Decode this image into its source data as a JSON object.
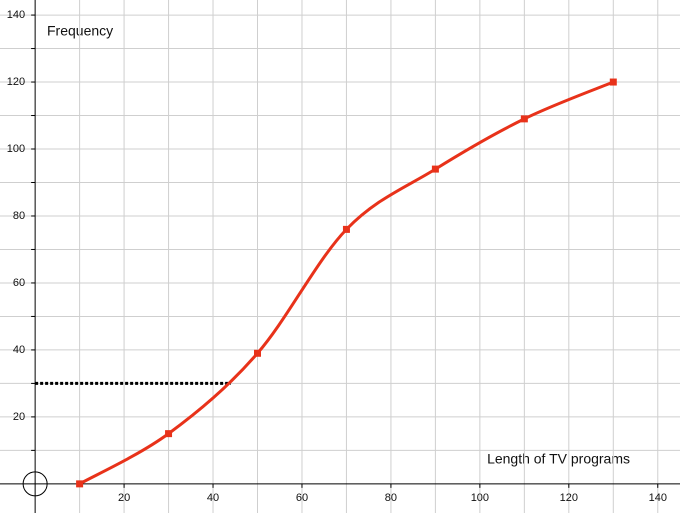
{
  "chart_data": {
    "type": "line",
    "x_label": "Length of TV programs",
    "y_label": "Frequency",
    "x": [
      10,
      30,
      50,
      70,
      90,
      110,
      130
    ],
    "series": [
      {
        "color": "#e8321a",
        "values": [
          0,
          15,
          39,
          76,
          94,
          109,
          120
        ]
      }
    ],
    "xlim": [
      -7.9,
      145
    ],
    "ylim": [
      -8.7,
      144.5
    ],
    "xticks": [
      20,
      40,
      60,
      80,
      100,
      120,
      140
    ],
    "yticks": [
      20,
      40,
      60,
      80,
      100,
      120,
      140
    ],
    "x_minor": [
      10,
      30,
      50,
      70,
      90,
      110,
      130
    ],
    "y_minor": [
      10,
      30,
      50,
      70,
      90,
      110,
      130
    ],
    "grid": true,
    "smooth": true,
    "reference_line": {
      "y": 30,
      "x_end": 44
    }
  }
}
